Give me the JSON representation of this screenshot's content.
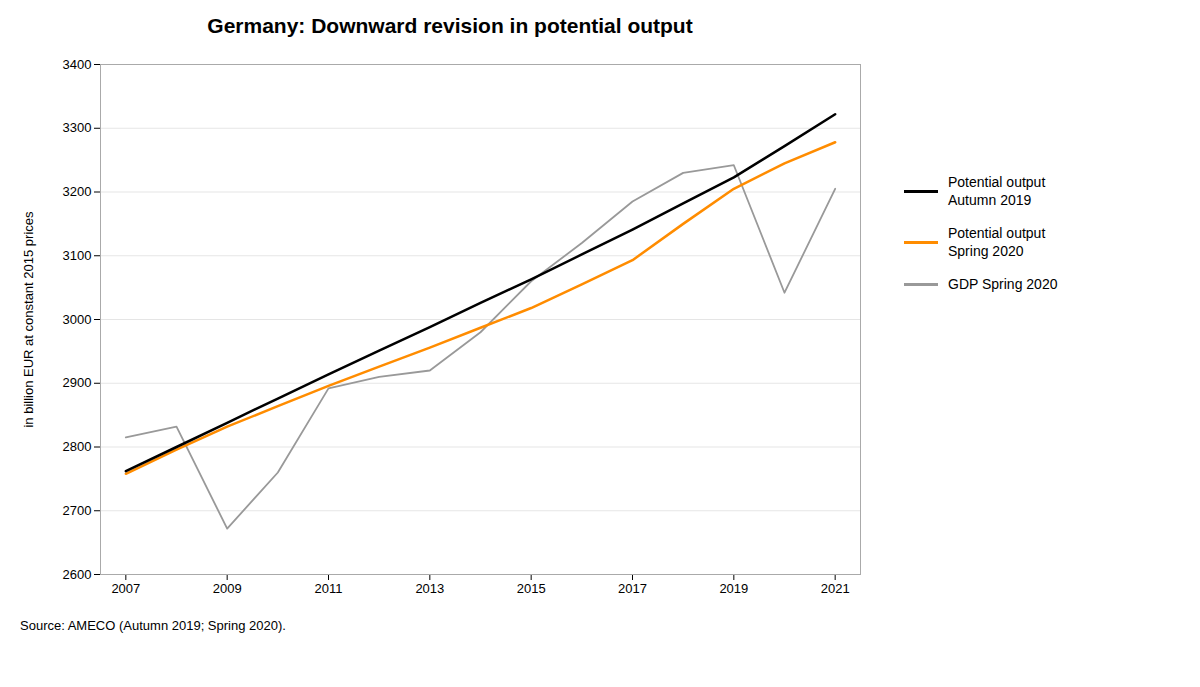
{
  "chart_data": {
    "type": "line",
    "title": "Germany: Downward revision in potential output",
    "ylabel": "in billion EUR at constant 2015 prices",
    "annotations": [
      "Source: AMECO (Autumn 2019; Spring 2020)."
    ],
    "x": [
      2007,
      2008,
      2009,
      2010,
      2011,
      2012,
      2013,
      2014,
      2015,
      2016,
      2017,
      2018,
      2019,
      2020,
      2021
    ],
    "series": [
      {
        "name": "Potential output\nAutumn 2019",
        "color": "#000000",
        "values": [
          2762,
          2800,
          2838,
          2876,
          2914,
          2951,
          2988,
          3026,
          3063,
          3102,
          3141,
          3182,
          3223,
          3272,
          3322
        ]
      },
      {
        "name": "Potential output\nSpring 2020",
        "color": "#FF8C00",
        "values": [
          2758,
          2796,
          2832,
          2864,
          2896,
          2926,
          2956,
          2987,
          3018,
          3055,
          3093,
          3150,
          3205,
          3245,
          3278
        ]
      },
      {
        "name": "GDP Spring 2020",
        "color": "#999999",
        "values": [
          2815,
          2832,
          2672,
          2760,
          2892,
          2910,
          2920,
          2980,
          3060,
          3120,
          3185,
          3230,
          3242,
          3042,
          3205
        ]
      }
    ],
    "xlim": [
      2006.5,
      2021.5
    ],
    "xticks": [
      2007,
      2009,
      2011,
      2013,
      2015,
      2017,
      2019,
      2021
    ],
    "ylim": [
      2600,
      3400
    ],
    "yticks": [
      2600,
      2700,
      2800,
      2900,
      3000,
      3100,
      3200,
      3300,
      3400
    ],
    "grid": "y",
    "legend": "right"
  }
}
